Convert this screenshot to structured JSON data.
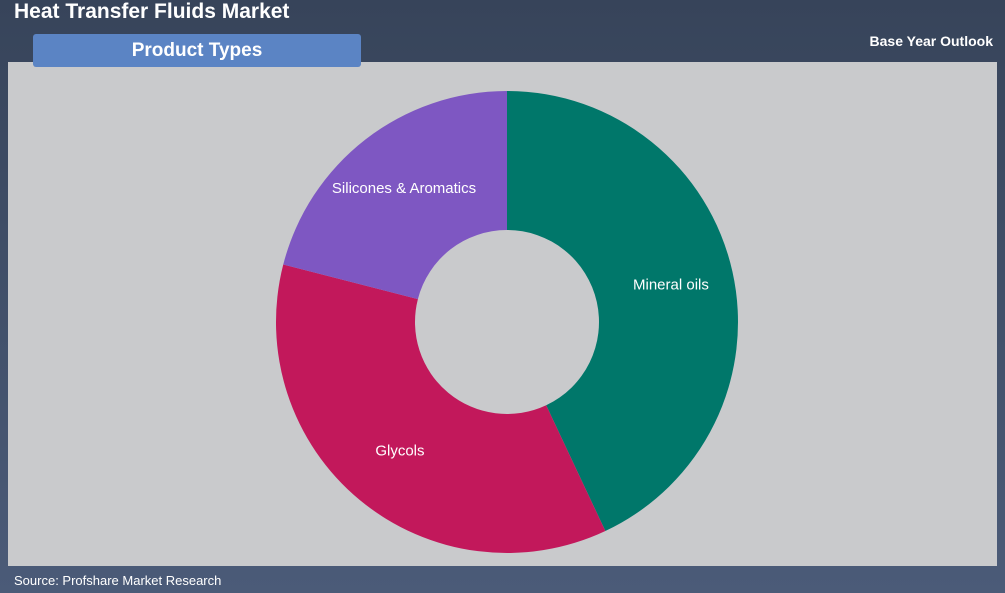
{
  "header": {
    "title": "Heat Transfer Fluids Market",
    "tab": "Product Types",
    "outlook": "Base Year Outlook"
  },
  "chart_data": {
    "type": "pie",
    "categories": [
      "Mineral oils",
      "Glycols",
      "Silicones & Aromatics"
    ],
    "values": [
      43,
      36,
      21
    ],
    "colors": [
      "#00776a",
      "#c2185b",
      "#7e57c2"
    ]
  },
  "source": "Source: Profshare Market Research"
}
